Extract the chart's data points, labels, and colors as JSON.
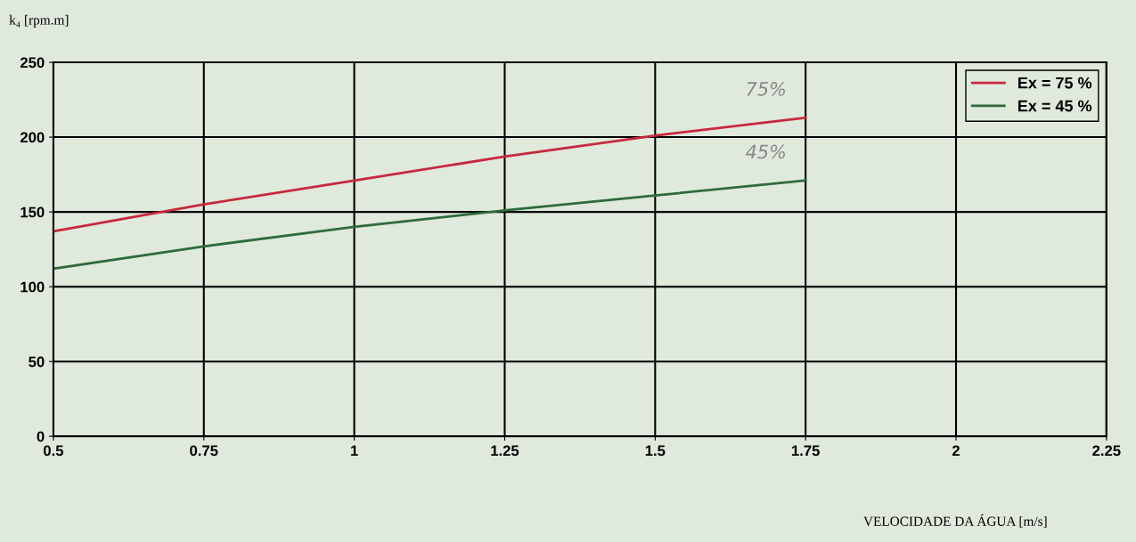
{
  "chart_data": {
    "type": "line",
    "xlabel": "VELOCIDADE DA ÁGUA [m/s]",
    "ylabel": "k₄ [rpm.m]",
    "x": [
      0.5,
      0.75,
      1,
      1.25,
      1.5,
      1.75
    ],
    "series": [
      {
        "name": "Ex = 75 %",
        "color": "#c8283c",
        "values": [
          137,
          155,
          171,
          187,
          201,
          213
        ]
      },
      {
        "name": "Ex = 45 %",
        "color": "#2e6b3c",
        "values": [
          112,
          127,
          140,
          151,
          161,
          171
        ]
      }
    ],
    "xlim": [
      0.5,
      2.25
    ],
    "xticks": [
      0.5,
      0.75,
      1,
      1.25,
      1.5,
      1.75,
      2,
      2.25
    ],
    "ylim": [
      0,
      250
    ],
    "yticks": [
      0,
      50,
      100,
      150,
      200,
      250
    ],
    "annotations": [
      {
        "text": "75%",
        "x": 1.75,
        "y": 213
      },
      {
        "text": "45%",
        "x": 1.75,
        "y": 171
      }
    ],
    "grid": true,
    "legend": "top right",
    "marker": "none",
    "line_style": "solid"
  }
}
